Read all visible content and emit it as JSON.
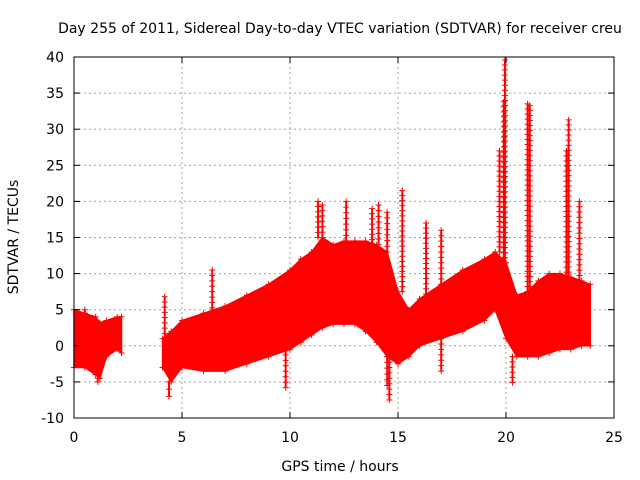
{
  "chart_data": {
    "type": "scatter",
    "title": "Day 255 of 2011, Sidereal Day-to-day VTEC variation (SDTVAR) for receiver creu",
    "xlabel": "GPS time / hours",
    "ylabel": "SDTVAR / TECUs",
    "xlim": [
      0,
      25
    ],
    "ylim": [
      -10,
      40
    ],
    "xticks": [
      0,
      5,
      10,
      15,
      20,
      25
    ],
    "yticks": [
      -10,
      -5,
      0,
      5,
      10,
      15,
      20,
      25,
      30,
      35,
      40
    ],
    "grid": true,
    "marker": "+",
    "color": "#ff0000",
    "series": [
      {
        "name": "SDTVAR",
        "envelope": {
          "x": [
            0.0,
            0.5,
            1.0,
            1.2,
            1.5,
            2.0,
            2.2,
            4.1,
            4.5,
            5.0,
            6.0,
            7.0,
            8.0,
            9.0,
            10.0,
            10.5,
            11.0,
            11.5,
            12.0,
            12.5,
            13.0,
            13.5,
            14.0,
            14.5,
            15.0,
            15.5,
            16.0,
            17.0,
            18.0,
            19.0,
            19.5,
            20.0,
            20.5,
            21.0,
            21.5,
            22.0,
            22.5,
            23.0,
            23.5,
            23.9
          ],
          "upper": [
            5.0,
            4.5,
            4.0,
            3.2,
            3.5,
            4.0,
            4.0,
            1.0,
            2.0,
            3.5,
            4.5,
            5.5,
            7.0,
            8.5,
            10.5,
            12.0,
            13.0,
            15.0,
            14.0,
            14.5,
            14.5,
            14.5,
            14.0,
            13.0,
            7.5,
            5.0,
            6.5,
            8.5,
            10.5,
            12.0,
            13.0,
            11.5,
            7.0,
            7.5,
            9.0,
            10.0,
            10.0,
            9.5,
            9.0,
            8.5
          ],
          "lower": [
            -3.0,
            -3.0,
            -4.0,
            -4.5,
            -1.5,
            -0.5,
            -1.0,
            -3.0,
            -5.0,
            -3.0,
            -3.5,
            -3.5,
            -2.5,
            -1.5,
            -0.5,
            0.5,
            1.5,
            2.5,
            3.0,
            3.0,
            3.0,
            2.0,
            0.5,
            -1.5,
            -2.5,
            -1.5,
            0.0,
            1.0,
            2.0,
            3.5,
            5.0,
            1.0,
            -1.5,
            -1.5,
            -1.5,
            -1.0,
            -0.5,
            -0.5,
            0.0,
            0.0
          ]
        },
        "gaps": [
          [
            2.2,
            4.1
          ]
        ],
        "spikes": [
          {
            "x": 0.5,
            "y": 5.0
          },
          {
            "x": 1.1,
            "y": -5.0
          },
          {
            "x": 4.2,
            "y": 6.8
          },
          {
            "x": 4.4,
            "y": -7.0
          },
          {
            "x": 6.4,
            "y": 10.5
          },
          {
            "x": 9.8,
            "y": -5.8
          },
          {
            "x": 11.3,
            "y": 20.0
          },
          {
            "x": 11.5,
            "y": 19.5
          },
          {
            "x": 12.6,
            "y": 20.0
          },
          {
            "x": 13.8,
            "y": 19.0
          },
          {
            "x": 14.1,
            "y": 19.5
          },
          {
            "x": 14.5,
            "y": 18.5
          },
          {
            "x": 14.5,
            "y": -5.5
          },
          {
            "x": 14.6,
            "y": -7.5
          },
          {
            "x": 15.2,
            "y": 21.5
          },
          {
            "x": 16.3,
            "y": 17.0
          },
          {
            "x": 17.0,
            "y": 16.0
          },
          {
            "x": 17.0,
            "y": -3.5
          },
          {
            "x": 19.7,
            "y": 27.0
          },
          {
            "x": 19.9,
            "y": 33.8
          },
          {
            "x": 19.95,
            "y": 39.6
          },
          {
            "x": 20.3,
            "y": -5.1
          },
          {
            "x": 21.0,
            "y": 33.5
          },
          {
            "x": 21.1,
            "y": 33.3
          },
          {
            "x": 22.8,
            "y": 27.0
          },
          {
            "x": 22.9,
            "y": 31.3
          },
          {
            "x": 23.4,
            "y": 20.0
          }
        ]
      }
    ]
  }
}
